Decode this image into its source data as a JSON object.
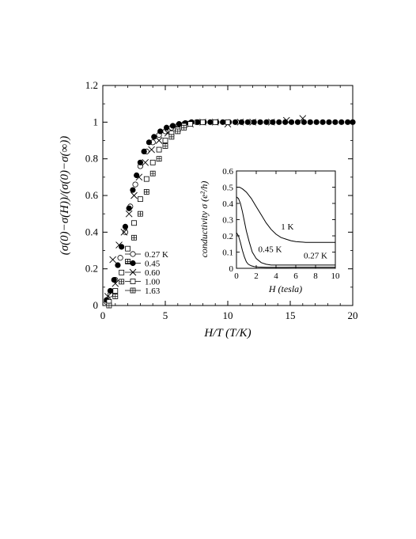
{
  "chart_data": [
    {
      "type": "scatter",
      "title": "",
      "xlabel": "H/T   (T/K)",
      "ylabel": "(σ(0)−σ(H))/(σ(0)−σ(∞))",
      "xlim": [
        0,
        20
      ],
      "ylim": [
        0,
        1.2
      ],
      "xticks": [
        0,
        5,
        10,
        15,
        20
      ],
      "yticks": [
        0,
        0.2,
        0.4,
        0.6,
        0.8,
        1,
        1.2
      ],
      "xtick_labels": [
        "0",
        "5",
        "10",
        "15",
        "20"
      ],
      "ytick_labels": [
        "0",
        "0.2",
        "0.4",
        "0.6",
        "0.8",
        "1",
        "1.2"
      ],
      "legend": {
        "placement": "bottom-left"
      },
      "series": [
        {
          "name": "0.27 K",
          "marker": "circle-open",
          "x": [
            0.3,
            0.6,
            1.0,
            1.4,
            1.8,
            2.2,
            2.6,
            3.0,
            3.5,
            4.0,
            4.5,
            5.0,
            5.5,
            6.0,
            6.5,
            7.0,
            7.5
          ],
          "y": [
            0.02,
            0.06,
            0.14,
            0.26,
            0.4,
            0.54,
            0.66,
            0.76,
            0.84,
            0.89,
            0.93,
            0.95,
            0.97,
            0.98,
            0.99,
            0.995,
            1.0
          ]
        },
        {
          "name": "0.45",
          "marker": "circle-filled",
          "x": [
            0.3,
            0.6,
            0.9,
            1.2,
            1.5,
            1.8,
            2.1,
            2.4,
            2.7,
            3.0,
            3.3,
            3.7,
            4.1,
            4.6,
            5.1,
            5.6,
            6.1,
            6.6,
            7.1,
            7.6,
            8.1,
            8.6,
            9.1,
            9.6,
            10.1,
            10.6,
            11.1,
            11.6,
            12.1,
            12.6,
            13.1,
            13.6,
            14.1,
            14.6,
            15.1,
            15.6,
            16.1,
            16.6,
            17.1,
            17.6,
            18.1,
            18.6,
            19.1,
            19.6,
            20.0
          ],
          "y": [
            0.03,
            0.08,
            0.14,
            0.22,
            0.32,
            0.43,
            0.53,
            0.63,
            0.71,
            0.78,
            0.84,
            0.89,
            0.92,
            0.95,
            0.97,
            0.98,
            0.99,
            0.995,
            1.0,
            1.0,
            1.0,
            1.0,
            1.0,
            1.0,
            1.0,
            1.0,
            1.0,
            1.0,
            1.0,
            1.0,
            1.0,
            1.0,
            1.0,
            1.0,
            1.0,
            1.0,
            1.0,
            1.0,
            1.0,
            1.0,
            1.0,
            1.0,
            1.0,
            1.0,
            1.0
          ]
        },
        {
          "name": "0.60",
          "marker": "cross",
          "x": [
            0.4,
            0.8,
            1.0,
            1.3,
            1.7,
            2.1,
            2.5,
            2.9,
            3.4,
            3.9,
            4.5,
            5.2,
            6.0,
            7.0,
            8.0,
            9.0,
            10.0,
            11.0,
            12.0,
            13.5,
            14.7,
            16.0
          ],
          "y": [
            0.05,
            0.25,
            0.12,
            0.33,
            0.4,
            0.5,
            0.6,
            0.7,
            0.78,
            0.85,
            0.9,
            0.94,
            0.97,
            0.99,
            1.0,
            1.0,
            0.99,
            1.0,
            1.0,
            1.0,
            1.01,
            1.02
          ]
        },
        {
          "name": "1.00",
          "marker": "square-open",
          "x": [
            0.5,
            1.0,
            1.5,
            2.0,
            2.5,
            3.0,
            3.5,
            4.0,
            4.5,
            5.0,
            5.5,
            6.0,
            6.5,
            7.0,
            8.0,
            9.0,
            10.0
          ],
          "y": [
            0.02,
            0.08,
            0.18,
            0.31,
            0.45,
            0.58,
            0.69,
            0.78,
            0.85,
            0.9,
            0.94,
            0.96,
            0.98,
            0.99,
            1.0,
            1.0,
            1.0
          ]
        },
        {
          "name": "1.63",
          "marker": "square-cross",
          "x": [
            0.5,
            1.0,
            1.5,
            2.0,
            2.5,
            3.0,
            3.5,
            4.0,
            4.5,
            5.0,
            5.5,
            6.0,
            6.5
          ],
          "y": [
            0.0,
            0.05,
            0.13,
            0.24,
            0.37,
            0.5,
            0.62,
            0.72,
            0.8,
            0.87,
            0.92,
            0.95,
            0.97
          ]
        }
      ]
    },
    {
      "type": "line",
      "title": "",
      "xlabel": "H (tesla)",
      "ylabel": "conductivity  σ  (e²/h)",
      "xlim": [
        0,
        10
      ],
      "ylim": [
        0,
        0.6
      ],
      "xticks": [
        0,
        2,
        4,
        6,
        8,
        10
      ],
      "yticks": [
        0,
        0.1,
        0.2,
        0.3,
        0.4,
        0.5,
        0.6
      ],
      "xtick_labels": [
        "0",
        "2",
        "4",
        "6",
        "8",
        "10"
      ],
      "ytick_labels": [
        "0",
        "0.1",
        "0.2",
        "0.3",
        "0.4",
        "0.5",
        "0.6"
      ],
      "series": [
        {
          "name": "1 K",
          "x": [
            0,
            0.3,
            0.6,
            1.0,
            1.5,
            2.0,
            2.5,
            3.0,
            3.5,
            4.0,
            4.5,
            5.0,
            5.5,
            6.0,
            7.0,
            8.0,
            9.0,
            10.0
          ],
          "y": [
            0.5,
            0.5,
            0.49,
            0.47,
            0.43,
            0.38,
            0.33,
            0.28,
            0.24,
            0.21,
            0.19,
            0.18,
            0.17,
            0.165,
            0.16,
            0.16,
            0.16,
            0.16
          ],
          "label_at": [
            4.5,
            0.24
          ]
        },
        {
          "name": "0.45 K",
          "x": [
            0,
            0.2,
            0.4,
            0.6,
            0.8,
            1.0,
            1.3,
            1.6,
            2.0,
            2.5,
            3.0,
            3.5,
            4.0,
            5.0,
            6.0,
            7.0,
            8.0,
            9.0,
            10.0
          ],
          "y": [
            0.44,
            0.43,
            0.4,
            0.35,
            0.29,
            0.23,
            0.16,
            0.1,
            0.06,
            0.035,
            0.025,
            0.02,
            0.02,
            0.02,
            0.02,
            0.02,
            0.02,
            0.02,
            0.02
          ],
          "label_at": [
            2.2,
            0.1
          ]
        },
        {
          "name": "0.27 K",
          "x": [
            0,
            0.2,
            0.4,
            0.6,
            0.8,
            1.0,
            1.2,
            1.5,
            1.8,
            2.2,
            3.0,
            4.0,
            5.0,
            6.0,
            7.0,
            8.0,
            9.0,
            10.0
          ],
          "y": [
            0.22,
            0.2,
            0.16,
            0.11,
            0.07,
            0.04,
            0.025,
            0.015,
            0.01,
            0.008,
            0.006,
            0.006,
            0.006,
            0.007,
            0.007,
            0.007,
            0.007,
            0.007
          ],
          "label_at": [
            6.8,
            0.06
          ]
        }
      ]
    }
  ]
}
